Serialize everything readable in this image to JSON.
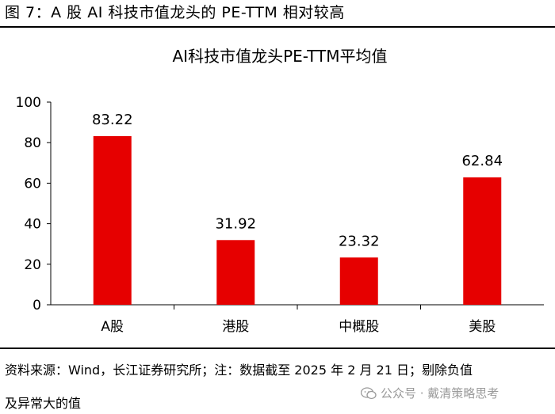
{
  "caption": "图 7：A 股 AI 科技市值龙头的 PE-TTM 相对较高",
  "source_line1": "资料来源：Wind，长江证券研究所；注：数据截至 2025 年 2 月 21 日；剔除负值",
  "source_line2": "及异常大的值",
  "watermark": "公众号 · 戴清策略思考",
  "colors": {
    "bar": "#e60000",
    "axis": "#000000",
    "text": "#000000"
  },
  "chart_data": {
    "type": "bar",
    "title": "AI科技市值龙头PE-TTM平均值",
    "categories": [
      "A股",
      "港股",
      "中概股",
      "美股"
    ],
    "values": [
      83.22,
      31.92,
      23.32,
      62.84
    ],
    "value_labels": [
      "83.22",
      "31.92",
      "23.32",
      "62.84"
    ],
    "ylim": [
      0,
      100
    ],
    "yticks": [
      0,
      20,
      40,
      60,
      80,
      100
    ],
    "grid": false,
    "legend": "none"
  }
}
